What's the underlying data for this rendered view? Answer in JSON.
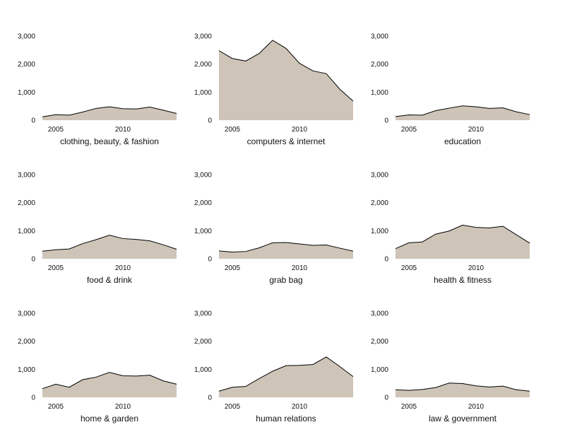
{
  "chart_data": {
    "type": "area",
    "y_ticks": [
      0,
      1000,
      2000,
      3000
    ],
    "y_tick_labels": [
      "0",
      "1,000",
      "2,000",
      "3,000"
    ],
    "x_ticks": [
      2005,
      2010
    ],
    "x_tick_labels": [
      "2005",
      "2010"
    ],
    "xlim": [
      2004,
      2014
    ],
    "ylim": [
      0,
      3000
    ],
    "grid": false,
    "x": [
      2004,
      2005,
      2006,
      2007,
      2008,
      2009,
      2010,
      2011,
      2012,
      2013,
      2014
    ],
    "panels": [
      {
        "title": "clothing, beauty, & fashion",
        "values": [
          120,
          200,
          180,
          290,
          420,
          480,
          410,
          400,
          470,
          360,
          240
        ]
      },
      {
        "title": "computers & internet",
        "values": [
          2480,
          2200,
          2110,
          2380,
          2850,
          2560,
          2030,
          1760,
          1660,
          1110,
          680
        ]
      },
      {
        "title": "education",
        "values": [
          130,
          190,
          180,
          340,
          430,
          510,
          480,
          420,
          440,
          300,
          200
        ]
      },
      {
        "title": "food & drink",
        "values": [
          270,
          320,
          350,
          540,
          680,
          840,
          720,
          690,
          640,
          500,
          340
        ]
      },
      {
        "title": "grab bag",
        "values": [
          280,
          240,
          260,
          390,
          570,
          580,
          530,
          480,
          490,
          380,
          270
        ]
      },
      {
        "title": "health & fitness",
        "values": [
          360,
          570,
          600,
          880,
          990,
          1200,
          1120,
          1100,
          1160,
          860,
          560
        ]
      },
      {
        "title": "home & garden",
        "values": [
          310,
          470,
          360,
          630,
          720,
          890,
          770,
          760,
          790,
          590,
          470
        ]
      },
      {
        "title": "human relations",
        "values": [
          220,
          360,
          390,
          670,
          930,
          1130,
          1140,
          1170,
          1440,
          1100,
          740
        ]
      },
      {
        "title": "law & government",
        "values": [
          270,
          250,
          280,
          350,
          510,
          490,
          410,
          370,
          400,
          270,
          220
        ]
      }
    ]
  }
}
